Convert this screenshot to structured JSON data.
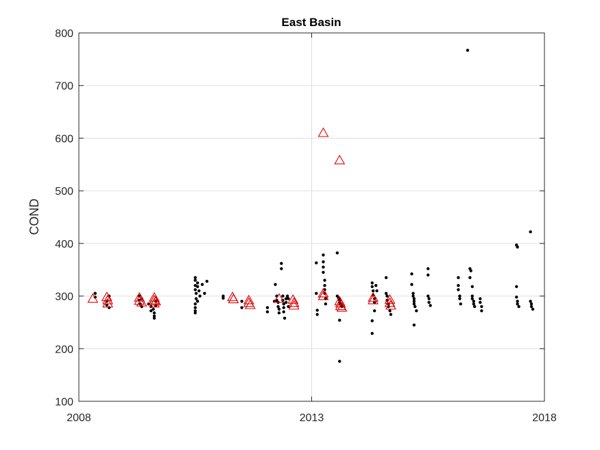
{
  "chart_data": {
    "type": "scatter",
    "title": "East Basin",
    "xlabel": "",
    "ylabel": "COND",
    "xlim": [
      2008,
      2018
    ],
    "ylim": [
      100,
      800
    ],
    "xticks": [
      2008,
      2013,
      2018
    ],
    "yticks": [
      100,
      200,
      300,
      400,
      500,
      600,
      700,
      800
    ],
    "grid": true,
    "colors": {
      "dots": "#000000",
      "triangles": "#e00000",
      "axis": "#262626",
      "grid": "#dfdfdf"
    },
    "series": [
      {
        "marker": "dot",
        "points": [
          [
            2008.35,
            305
          ],
          [
            2008.35,
            298
          ],
          [
            2008.6,
            290
          ],
          [
            2008.6,
            283
          ],
          [
            2008.65,
            278
          ],
          [
            2008.65,
            300
          ],
          [
            2009.3,
            300
          ],
          [
            2009.3,
            292
          ],
          [
            2009.32,
            285
          ],
          [
            2009.35,
            295
          ],
          [
            2009.35,
            280
          ],
          [
            2009.5,
            285
          ],
          [
            2009.55,
            280
          ],
          [
            2009.55,
            272
          ],
          [
            2009.6,
            275
          ],
          [
            2009.62,
            268
          ],
          [
            2009.62,
            262
          ],
          [
            2009.62,
            258
          ],
          [
            2009.65,
            282
          ],
          [
            2009.65,
            290
          ],
          [
            2010.5,
            335
          ],
          [
            2010.5,
            330
          ],
          [
            2010.5,
            320
          ],
          [
            2010.5,
            312
          ],
          [
            2010.52,
            305
          ],
          [
            2010.52,
            295
          ],
          [
            2010.5,
            285
          ],
          [
            2010.5,
            278
          ],
          [
            2010.5,
            272
          ],
          [
            2010.5,
            268
          ],
          [
            2010.55,
            325
          ],
          [
            2010.55,
            318
          ],
          [
            2010.55,
            290
          ],
          [
            2010.58,
            310
          ],
          [
            2010.6,
            300
          ],
          [
            2010.65,
            322
          ],
          [
            2010.7,
            305
          ],
          [
            2010.75,
            328
          ],
          [
            2011.1,
            300
          ],
          [
            2011.1,
            296
          ],
          [
            2011.5,
            278
          ],
          [
            2011.5,
            290
          ],
          [
            2012.05,
            278
          ],
          [
            2012.05,
            270
          ],
          [
            2012.2,
            290
          ],
          [
            2012.22,
            322
          ],
          [
            2012.25,
            300
          ],
          [
            2012.25,
            292
          ],
          [
            2012.28,
            288
          ],
          [
            2012.28,
            280
          ],
          [
            2012.3,
            275
          ],
          [
            2012.3,
            268
          ],
          [
            2012.35,
            362
          ],
          [
            2012.35,
            352
          ],
          [
            2012.38,
            300
          ],
          [
            2012.38,
            292
          ],
          [
            2012.4,
            285
          ],
          [
            2012.4,
            278
          ],
          [
            2012.4,
            270
          ],
          [
            2012.42,
            258
          ],
          [
            2012.45,
            295
          ],
          [
            2012.45,
            288
          ],
          [
            2012.48,
            300
          ],
          [
            2012.5,
            295
          ],
          [
            2012.5,
            280
          ],
          [
            2013.1,
            363
          ],
          [
            2013.1,
            305
          ],
          [
            2013.12,
            273
          ],
          [
            2013.12,
            265
          ],
          [
            2013.25,
            378
          ],
          [
            2013.25,
            365
          ],
          [
            2013.25,
            355
          ],
          [
            2013.25,
            345
          ],
          [
            2013.28,
            330
          ],
          [
            2013.28,
            320
          ],
          [
            2013.28,
            312
          ],
          [
            2013.28,
            305
          ],
          [
            2013.3,
            295
          ],
          [
            2013.3,
            285
          ],
          [
            2013.55,
            382
          ],
          [
            2013.55,
            300
          ],
          [
            2013.58,
            296
          ],
          [
            2013.6,
            292
          ],
          [
            2013.6,
            288
          ],
          [
            2013.62,
            284
          ],
          [
            2013.65,
            280
          ],
          [
            2013.6,
            254
          ],
          [
            2013.6,
            176
          ],
          [
            2014.3,
            325
          ],
          [
            2014.3,
            318
          ],
          [
            2014.32,
            310
          ],
          [
            2014.32,
            302
          ],
          [
            2014.35,
            295
          ],
          [
            2014.35,
            288
          ],
          [
            2014.35,
            272
          ],
          [
            2014.3,
            253
          ],
          [
            2014.3,
            229
          ],
          [
            2014.38,
            320
          ],
          [
            2014.4,
            310
          ],
          [
            2014.6,
            335
          ],
          [
            2014.6,
            305
          ],
          [
            2014.62,
            300
          ],
          [
            2014.62,
            292
          ],
          [
            2014.65,
            285
          ],
          [
            2014.65,
            280
          ],
          [
            2014.68,
            272
          ],
          [
            2014.7,
            265
          ],
          [
            2015.15,
            342
          ],
          [
            2015.15,
            322
          ],
          [
            2015.18,
            305
          ],
          [
            2015.18,
            300
          ],
          [
            2015.2,
            295
          ],
          [
            2015.2,
            290
          ],
          [
            2015.2,
            285
          ],
          [
            2015.22,
            280
          ],
          [
            2015.25,
            272
          ],
          [
            2015.2,
            245
          ],
          [
            2015.5,
            352
          ],
          [
            2015.5,
            340
          ],
          [
            2015.5,
            300
          ],
          [
            2015.52,
            295
          ],
          [
            2015.52,
            288
          ],
          [
            2015.55,
            282
          ],
          [
            2016.15,
            335
          ],
          [
            2016.15,
            320
          ],
          [
            2016.15,
            312
          ],
          [
            2016.18,
            300
          ],
          [
            2016.18,
            295
          ],
          [
            2016.2,
            285
          ],
          [
            2016.35,
            767
          ],
          [
            2016.4,
            352
          ],
          [
            2016.42,
            348
          ],
          [
            2016.4,
            335
          ],
          [
            2016.45,
            318
          ],
          [
            2016.45,
            300
          ],
          [
            2016.45,
            295
          ],
          [
            2016.48,
            290
          ],
          [
            2016.48,
            285
          ],
          [
            2016.5,
            280
          ],
          [
            2016.62,
            295
          ],
          [
            2016.62,
            288
          ],
          [
            2016.65,
            280
          ],
          [
            2016.65,
            272
          ],
          [
            2017.4,
            397
          ],
          [
            2017.42,
            393
          ],
          [
            2017.4,
            318
          ],
          [
            2017.4,
            298
          ],
          [
            2017.42,
            290
          ],
          [
            2017.42,
            285
          ],
          [
            2017.45,
            280
          ],
          [
            2017.7,
            422
          ],
          [
            2017.7,
            290
          ],
          [
            2017.72,
            285
          ],
          [
            2017.72,
            280
          ],
          [
            2017.75,
            275
          ]
        ]
      },
      {
        "marker": "triangle",
        "points": [
          [
            2008.3,
            295
          ],
          [
            2008.6,
            298
          ],
          [
            2008.62,
            292
          ],
          [
            2008.62,
            286
          ],
          [
            2009.3,
            297
          ],
          [
            2009.3,
            291
          ],
          [
            2009.35,
            288
          ],
          [
            2009.62,
            297
          ],
          [
            2009.62,
            292
          ],
          [
            2009.62,
            286
          ],
          [
            2009.65,
            290
          ],
          [
            2011.3,
            298
          ],
          [
            2011.32,
            294
          ],
          [
            2011.65,
            292
          ],
          [
            2011.65,
            287
          ],
          [
            2011.68,
            283
          ],
          [
            2012.3,
            295
          ],
          [
            2012.6,
            293
          ],
          [
            2012.62,
            287
          ],
          [
            2012.62,
            282
          ],
          [
            2013.25,
            610
          ],
          [
            2013.25,
            305
          ],
          [
            2013.25,
            300
          ],
          [
            2013.6,
            558
          ],
          [
            2013.6,
            290
          ],
          [
            2013.62,
            286
          ],
          [
            2013.62,
            281
          ],
          [
            2013.65,
            278
          ],
          [
            2014.32,
            297
          ],
          [
            2014.32,
            292
          ],
          [
            2014.68,
            293
          ],
          [
            2014.68,
            287
          ],
          [
            2014.7,
            282
          ]
        ]
      }
    ]
  }
}
